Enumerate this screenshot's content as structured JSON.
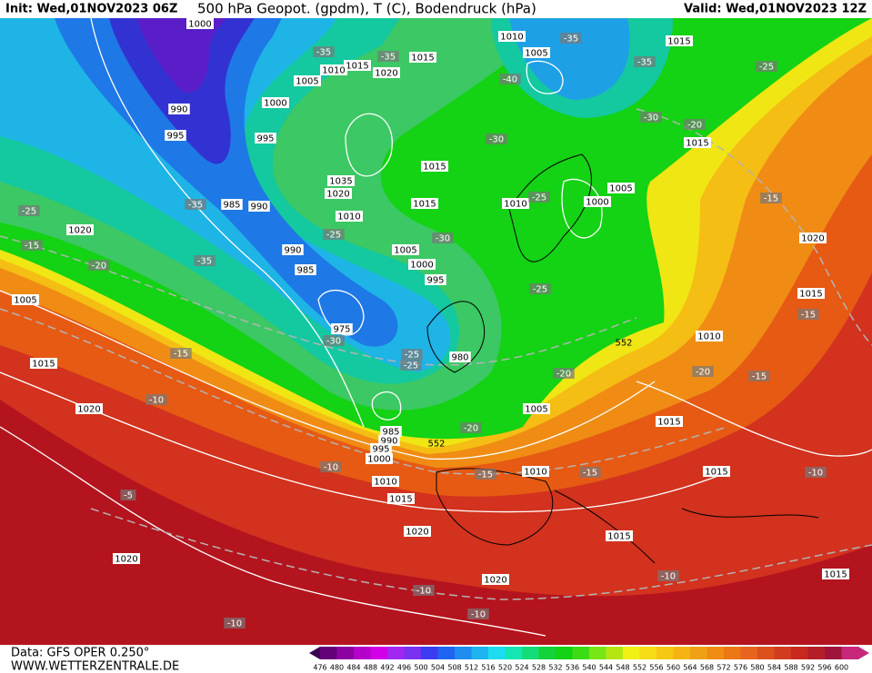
{
  "header": {
    "init": "Init: Wed,01NOV2023 06Z",
    "title": "500 hPa Geopot. (gpdm), T (C), Bodendruck (hPa)",
    "valid": "Valid: Wed,01NOV2023 12Z"
  },
  "footer": {
    "data": "Data: GFS OPER 0.250°",
    "site": "WWW.WETTERZENTRALE.DE"
  },
  "colorbar": {
    "labels": [
      "476",
      "480",
      "484",
      "488",
      "492",
      "496",
      "500",
      "504",
      "508",
      "512",
      "516",
      "520",
      "524",
      "528",
      "532",
      "536",
      "540",
      "544",
      "548",
      "552",
      "556",
      "560",
      "564",
      "568",
      "572",
      "576",
      "580",
      "584",
      "588",
      "592",
      "596",
      "600"
    ]
  },
  "map": {
    "pressure_labels": [
      "1000",
      "1010",
      "1005",
      "1015",
      "1015",
      "1015",
      "1010",
      "1020",
      "1005",
      "1000",
      "990",
      "995",
      "995",
      "1015",
      "1015",
      "1035",
      "1020",
      "985",
      "990",
      "1015",
      "1010",
      "1005",
      "1000",
      "1010",
      "1020",
      "1020",
      "1005",
      "990",
      "1000",
      "985",
      "995",
      "1005",
      "1015",
      "975",
      "1010",
      "980",
      "1015",
      "1020",
      "1005",
      "1015",
      "985",
      "990",
      "995",
      "1000",
      "1010",
      "1010",
      "1015",
      "1015",
      "1020",
      "1015",
      "1020",
      "1020",
      "1015"
    ],
    "temperature_labels": [
      "-35",
      "-35",
      "-35",
      "-35",
      "-25",
      "-40",
      "-30",
      "-20",
      "-30",
      "-35",
      "-25",
      "-25",
      "-15",
      "-15",
      "-25",
      "-30",
      "-20",
      "-35",
      "-25",
      "-15",
      "-30",
      "-25",
      "-25",
      "-15",
      "-20",
      "-20",
      "-15",
      "-10",
      "-20",
      "-10",
      "-15",
      "-15",
      "-10",
      "-5",
      "-10",
      "-10",
      "-10",
      "-10"
    ],
    "contour_labels": [
      "552",
      "552"
    ]
  }
}
